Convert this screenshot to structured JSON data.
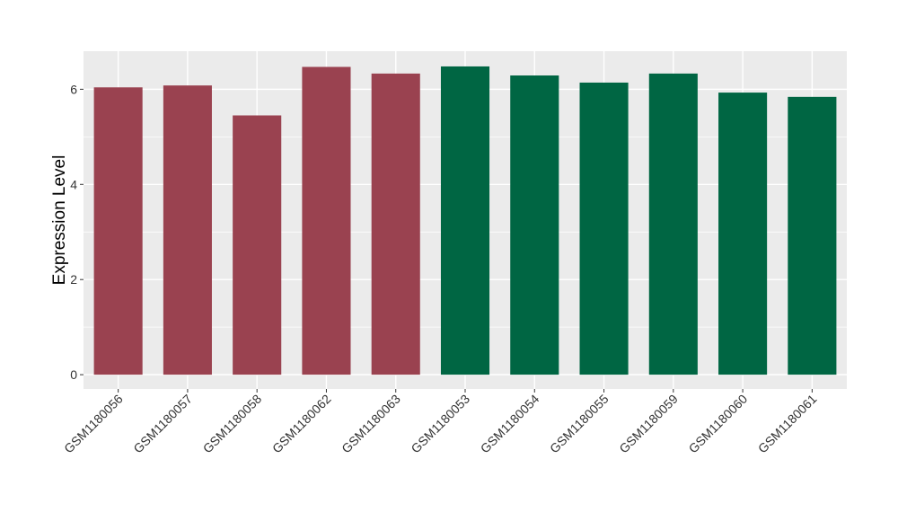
{
  "chart_data": {
    "type": "bar",
    "title": "",
    "xlabel": "",
    "ylabel": "Expression Level",
    "ylim": [
      -0.3,
      6.8
    ],
    "y_ticks": [
      0,
      2,
      4,
      6
    ],
    "grid": true,
    "legend": "none",
    "colors": {
      "group1": "#9A4250",
      "group2": "#006643",
      "panel": "#EBEBEB",
      "gridline": "#FFFFFF"
    },
    "categories": [
      "GSM1180056",
      "GSM1180057",
      "GSM1180058",
      "GSM1180062",
      "GSM1180063",
      "GSM1180053",
      "GSM1180054",
      "GSM1180055",
      "GSM1180059",
      "GSM1180060",
      "GSM1180061"
    ],
    "values": [
      6.04,
      6.08,
      5.45,
      6.47,
      6.33,
      6.48,
      6.29,
      6.14,
      6.33,
      5.93,
      5.84
    ],
    "groups": [
      1,
      1,
      1,
      1,
      1,
      2,
      2,
      2,
      2,
      2,
      2
    ]
  }
}
